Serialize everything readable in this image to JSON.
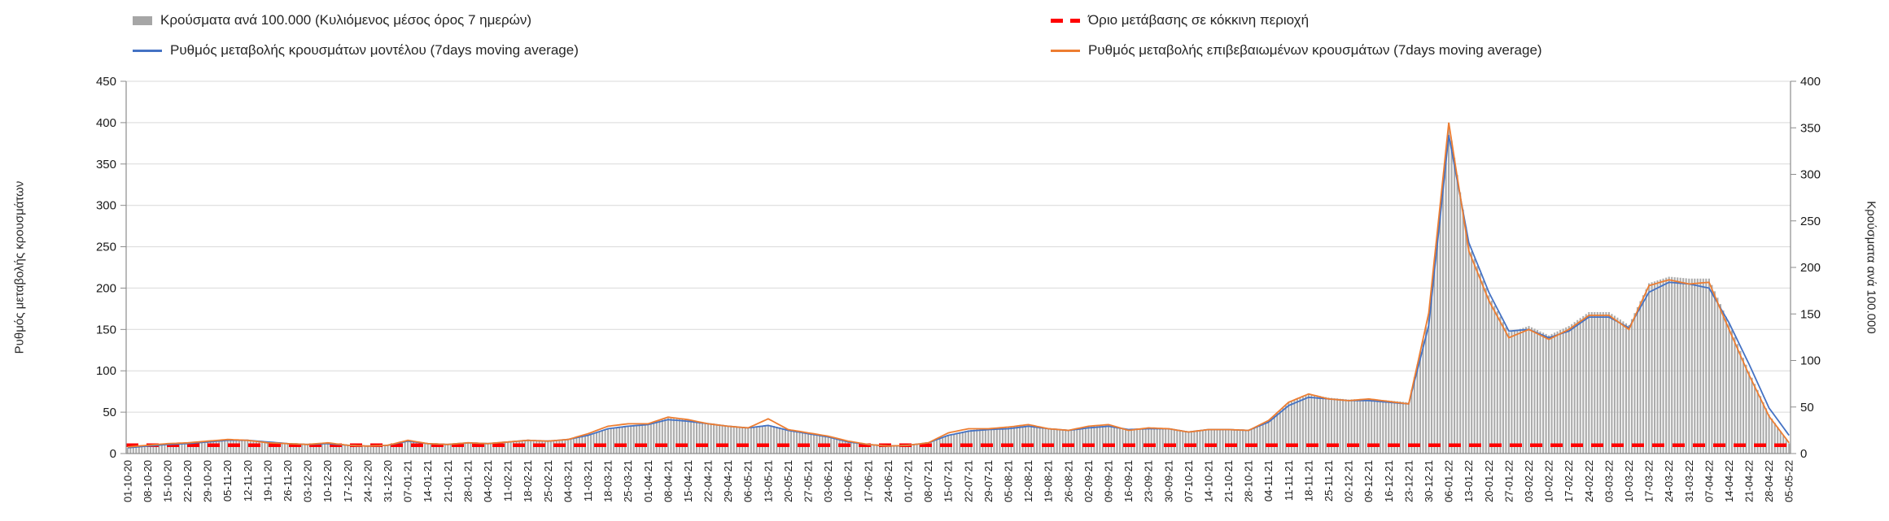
{
  "chart_data": {
    "type": "combo-bar-line",
    "title": "",
    "legend_position": "top",
    "grid": "horizontal",
    "x": [
      "01-10-20",
      "08-10-20",
      "15-10-20",
      "22-10-20",
      "29-10-20",
      "05-11-20",
      "12-11-20",
      "19-11-20",
      "26-11-20",
      "03-12-20",
      "10-12-20",
      "17-12-20",
      "24-12-20",
      "31-12-20",
      "07-01-21",
      "14-01-21",
      "21-01-21",
      "28-01-21",
      "04-02-21",
      "11-02-21",
      "18-02-21",
      "25-02-21",
      "04-03-21",
      "11-03-21",
      "18-03-21",
      "25-03-21",
      "01-04-21",
      "08-04-21",
      "15-04-21",
      "22-04-21",
      "29-04-21",
      "06-05-21",
      "13-05-21",
      "20-05-21",
      "27-05-21",
      "03-06-21",
      "10-06-21",
      "17-06-21",
      "24-06-21",
      "01-07-21",
      "08-07-21",
      "15-07-21",
      "22-07-21",
      "29-07-21",
      "05-08-21",
      "12-08-21",
      "19-08-21",
      "26-08-21",
      "02-09-21",
      "09-09-21",
      "16-09-21",
      "23-09-21",
      "30-09-21",
      "07-10-21",
      "14-10-21",
      "21-10-21",
      "28-10-21",
      "04-11-21",
      "11-11-21",
      "18-11-21",
      "25-11-21",
      "02-12-21",
      "09-12-21",
      "16-12-21",
      "23-12-21",
      "30-12-21",
      "06-01-22",
      "13-01-22",
      "20-01-22",
      "27-01-22",
      "03-02-22",
      "10-02-22",
      "17-02-22",
      "24-02-22",
      "03-03-22",
      "10-03-22",
      "17-03-22",
      "24-03-22",
      "31-03-22",
      "07-04-22",
      "14-04-22",
      "21-04-22",
      "28-04-22",
      "05-05-22"
    ],
    "series": [
      {
        "name": "Κρούσματα ανά 100.000 (Κυλιόμενος μέσος όρος 7 ημερών)",
        "type": "bar",
        "axis": "right",
        "color": "#ABABAB",
        "legend_color": "#A6A6A6",
        "values": [
          6,
          8,
          10,
          11,
          12,
          14,
          14,
          12,
          11,
          10,
          11,
          9,
          8,
          9,
          13,
          10,
          10,
          11,
          11,
          12,
          14,
          13,
          15,
          20,
          27,
          30,
          32,
          38,
          36,
          33,
          30,
          28,
          31,
          26,
          22,
          18,
          13,
          10,
          8,
          9,
          11,
          20,
          25,
          27,
          28,
          30,
          27,
          25,
          29,
          30,
          26,
          28,
          27,
          24,
          26,
          26,
          25,
          35,
          55,
          64,
          60,
          58,
          59,
          57,
          55,
          150,
          355,
          225,
          170,
          130,
          137,
          127,
          137,
          152,
          152,
          138,
          183,
          190,
          188,
          188,
          140,
          88,
          42,
          11
        ]
      },
      {
        "name": "Ρυθμός μεταβολής κρουσμάτων μοντέλου (7days moving average)",
        "type": "line",
        "axis": "left",
        "color": "#4472C4",
        "values": [
          7,
          9,
          11,
          12,
          14,
          16,
          16,
          14,
          12,
          11,
          12,
          10,
          9,
          10,
          15,
          12,
          11,
          13,
          12,
          14,
          16,
          15,
          17,
          22,
          30,
          33,
          35,
          41,
          39,
          36,
          33,
          31,
          34,
          28,
          24,
          20,
          14,
          11,
          9,
          10,
          13,
          22,
          27,
          29,
          30,
          33,
          30,
          28,
          31,
          33,
          29,
          30,
          30,
          26,
          29,
          29,
          28,
          38,
          58,
          68,
          66,
          64,
          64,
          62,
          60,
          155,
          385,
          255,
          195,
          148,
          150,
          140,
          148,
          165,
          165,
          152,
          195,
          207,
          205,
          200,
          158,
          108,
          55,
          22
        ]
      },
      {
        "name": "Ρυθμός μεταβολής επιβεβαιωμένων κρουσμάτων (7days moving average)",
        "type": "line",
        "axis": "left",
        "color": "#ED7D31",
        "values": [
          8,
          10,
          12,
          13,
          15,
          17,
          16,
          13,
          12,
          11,
          13,
          10,
          9,
          10,
          16,
          12,
          11,
          13,
          12,
          14,
          16,
          15,
          17,
          24,
          33,
          36,
          36,
          44,
          41,
          36,
          33,
          31,
          42,
          29,
          25,
          21,
          15,
          11,
          9,
          10,
          13,
          25,
          30,
          30,
          32,
          35,
          30,
          28,
          33,
          35,
          28,
          31,
          30,
          26,
          29,
          29,
          28,
          40,
          62,
          72,
          66,
          64,
          66,
          63,
          60,
          170,
          400,
          245,
          185,
          140,
          150,
          138,
          150,
          167,
          167,
          150,
          203,
          210,
          205,
          207,
          150,
          95,
          45,
          13
        ]
      },
      {
        "name": "Όριο μετάβασης σε κόκκινη περιοχή",
        "type": "threshold-line",
        "style": "dashed",
        "axis": "left",
        "color": "#FF0000",
        "constant": 10
      }
    ],
    "axes": {
      "left": {
        "label": "Ρυθμός μεταβολής κρουσμάτων",
        "min": 0,
        "max": 450,
        "step": 50,
        "ticks": [
          0,
          50,
          100,
          150,
          200,
          250,
          300,
          350,
          400,
          450
        ]
      },
      "right": {
        "label": "Κρούσματα ανά 100.000",
        "min": 0,
        "max": 400,
        "step": 50,
        "ticks": [
          0,
          50,
          100,
          150,
          200,
          250,
          300,
          350,
          400
        ]
      }
    }
  }
}
